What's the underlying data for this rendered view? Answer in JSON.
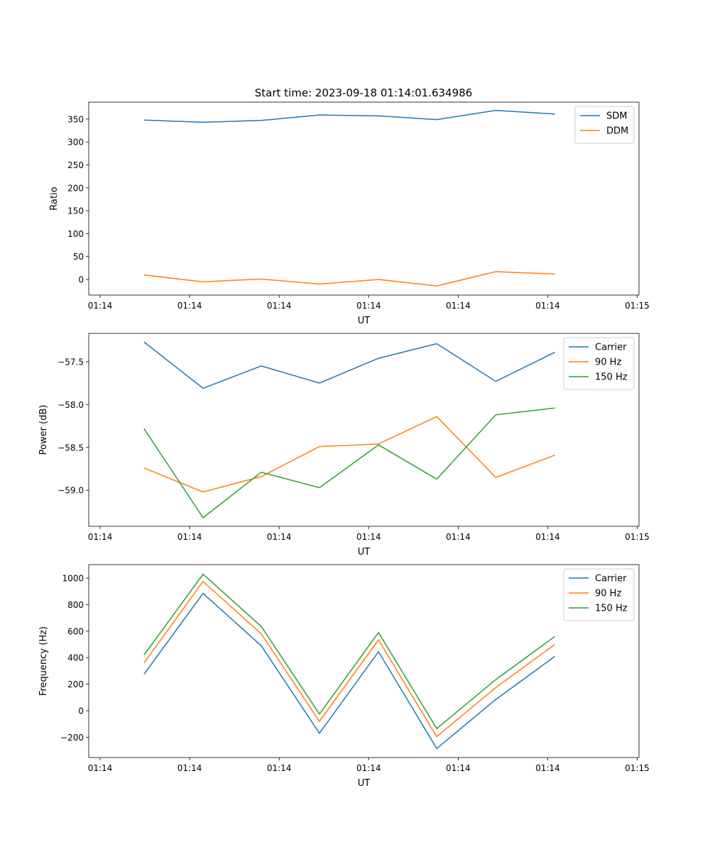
{
  "title": "Start time: 2023-09-18 01:14:01.634986",
  "colors": {
    "c0": "#1f77b4",
    "c1": "#ff7f0e",
    "c2": "#2ca02c"
  },
  "chart_data": [
    {
      "type": "line",
      "xlabel": "UT",
      "ylabel": "Ratio",
      "x_seconds_after_01_14_00": [
        4.9,
        11.5,
        18.0,
        24.5,
        31.1,
        37.6,
        44.2,
        50.8
      ],
      "xlim": [
        -1.27,
        60.2
      ],
      "xticks": [
        0,
        10,
        20,
        30,
        40,
        50,
        60
      ],
      "xtick_labels": [
        "01:14",
        "01:14",
        "01:14",
        "01:14",
        "01:14",
        "01:14",
        "01:15"
      ],
      "ylim": [
        -34,
        387
      ],
      "yticks": [
        0,
        50,
        100,
        150,
        200,
        250,
        300,
        350
      ],
      "ytick_labels": [
        "0",
        "50",
        "100",
        "150",
        "200",
        "250",
        "300",
        "350"
      ],
      "legend": "top-right",
      "series": [
        {
          "name": "SDM",
          "color": "#1f77b4",
          "values": [
            348,
            343,
            347,
            359,
            357,
            349,
            369,
            361
          ]
        },
        {
          "name": "DDM",
          "color": "#ff7f0e",
          "values": [
            10,
            -5,
            1,
            -10,
            0,
            -14,
            17,
            12
          ]
        }
      ]
    },
    {
      "type": "line",
      "xlabel": "UT",
      "ylabel": "Power (dB)",
      "x_seconds_after_01_14_00": [
        4.9,
        11.5,
        18.0,
        24.5,
        31.1,
        37.6,
        44.2,
        50.8
      ],
      "xlim": [
        -1.27,
        60.2
      ],
      "xticks": [
        0,
        10,
        20,
        30,
        40,
        50,
        60
      ],
      "xtick_labels": [
        "01:14",
        "01:14",
        "01:14",
        "01:14",
        "01:14",
        "01:14",
        "01:15"
      ],
      "ylim": [
        -59.42,
        -57.17
      ],
      "yticks": [
        -59.0,
        -58.5,
        -58.0,
        -57.5
      ],
      "ytick_labels": [
        "−59.0",
        "−58.5",
        "−58.0",
        "−57.5"
      ],
      "legend": "top-right",
      "series": [
        {
          "name": "Carrier",
          "color": "#1f77b4",
          "values": [
            -57.27,
            -57.81,
            -57.55,
            -57.75,
            -57.46,
            -57.29,
            -57.73,
            -57.39
          ]
        },
        {
          "name": "90 Hz",
          "color": "#ff7f0e",
          "values": [
            -58.74,
            -59.02,
            -58.84,
            -58.49,
            -58.46,
            -58.14,
            -58.85,
            -58.59
          ]
        },
        {
          "name": "150 Hz",
          "color": "#2ca02c",
          "values": [
            -58.28,
            -59.32,
            -58.79,
            -58.97,
            -58.47,
            -58.87,
            -58.12,
            -58.04
          ]
        }
      ]
    },
    {
      "type": "line",
      "xlabel": "UT",
      "ylabel": "Frequency (Hz)",
      "x_seconds_after_01_14_00": [
        4.9,
        11.5,
        18.0,
        24.5,
        31.1,
        37.6,
        44.2,
        50.8
      ],
      "xlim": [
        -1.27,
        60.2
      ],
      "xticks": [
        0,
        10,
        20,
        30,
        40,
        50,
        60
      ],
      "xtick_labels": [
        "01:14",
        "01:14",
        "01:14",
        "01:14",
        "01:14",
        "01:14",
        "01:15"
      ],
      "ylim": [
        -353,
        1102
      ],
      "yticks": [
        -200,
        0,
        200,
        400,
        600,
        800,
        1000
      ],
      "ytick_labels": [
        "−200",
        "0",
        "200",
        "400",
        "600",
        "800",
        "1000"
      ],
      "legend": "top-right",
      "series": [
        {
          "name": "Carrier",
          "color": "#1f77b4",
          "values": [
            275,
            885,
            490,
            -170,
            445,
            -285,
            85,
            410
          ]
        },
        {
          "name": "90 Hz",
          "color": "#ff7f0e",
          "values": [
            360,
            975,
            580,
            -80,
            535,
            -195,
            175,
            500
          ]
        },
        {
          "name": "150 Hz",
          "color": "#2ca02c",
          "values": [
            420,
            1030,
            635,
            -25,
            590,
            -135,
            235,
            560
          ]
        }
      ]
    }
  ]
}
